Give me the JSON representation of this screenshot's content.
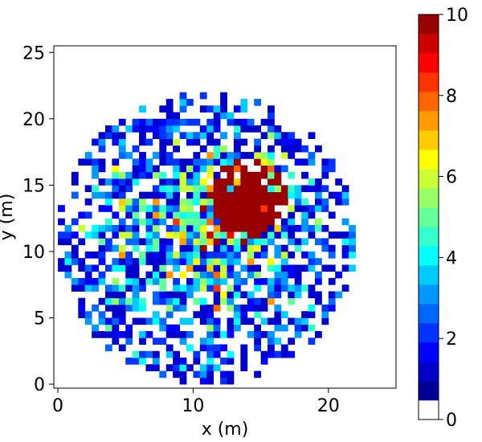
{
  "chart_data": {
    "type": "heatmap",
    "title": "",
    "xlabel": "x (m)",
    "ylabel": "y (m)",
    "xlim": [
      -0.3,
      25
    ],
    "ylim": [
      -0.3,
      25.5
    ],
    "xticks": [
      0,
      10,
      20
    ],
    "yticks": [
      0,
      5,
      10,
      15,
      20,
      25
    ],
    "bin_size": 0.5,
    "grid": false,
    "colormap": "jet",
    "colorbar": {
      "vmin": 0,
      "vmax": 10,
      "ticks": [
        0,
        2,
        4,
        6,
        8,
        10
      ],
      "levels": 20,
      "zero_color": "#ffffff"
    },
    "distribution": {
      "description_visible": "counts per 0.5 m bin; dense core (>=10) centered near x=14, y=14; sparse low counts spreading to radius ~11 m around x=11, y=11",
      "core_center": [
        14.2,
        14.0
      ],
      "core_radius": 3.0,
      "outer_center": [
        11.0,
        11.0
      ],
      "outer_radius": 11.0,
      "peak_value": 10
    }
  }
}
